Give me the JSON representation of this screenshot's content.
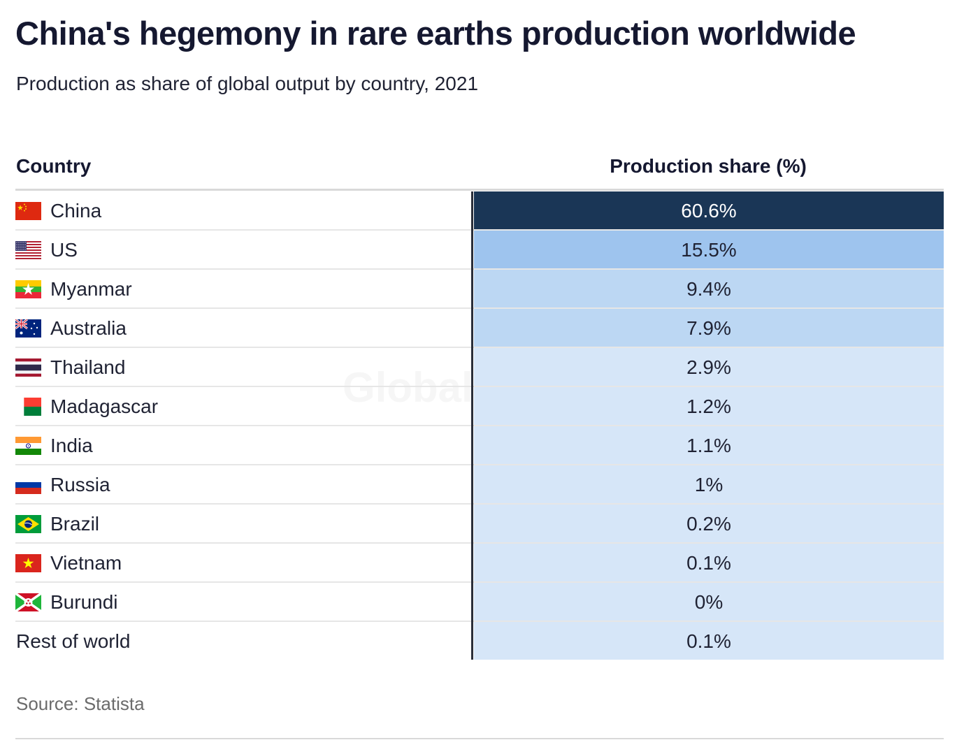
{
  "title": "China's hegemony in rare earths production worldwide",
  "subtitle": "Production as share of global output by country, 2021",
  "source": "Source: Statista",
  "watermark": "GlobalData",
  "colors": {
    "dark": "#1a3656",
    "mid": "#9ec4ee",
    "light": "#bcd7f3",
    "pale": "#d6e6f8"
  },
  "chart_data": {
    "type": "table",
    "columns": [
      "Country",
      "Production share (%)"
    ],
    "rows": [
      {
        "country": "China",
        "flag": "china-flag-icon",
        "share": 60.6,
        "label": "60.6%"
      },
      {
        "country": "US",
        "flag": "us-flag-icon",
        "share": 15.5,
        "label": "15.5%"
      },
      {
        "country": "Myanmar",
        "flag": "myanmar-flag-icon",
        "share": 9.4,
        "label": "9.4%"
      },
      {
        "country": "Australia",
        "flag": "australia-flag-icon",
        "share": 7.9,
        "label": "7.9%"
      },
      {
        "country": "Thailand",
        "flag": "thailand-flag-icon",
        "share": 2.9,
        "label": "2.9%"
      },
      {
        "country": "Madagascar",
        "flag": "madagascar-flag-icon",
        "share": 1.2,
        "label": "1.2%"
      },
      {
        "country": "India",
        "flag": "india-flag-icon",
        "share": 1.1,
        "label": "1.1%"
      },
      {
        "country": "Russia",
        "flag": "russia-flag-icon",
        "share": 1,
        "label": "1%"
      },
      {
        "country": "Brazil",
        "flag": "brazil-flag-icon",
        "share": 0.2,
        "label": "0.2%"
      },
      {
        "country": "Vietnam",
        "flag": "vietnam-flag-icon",
        "share": 0.1,
        "label": "0.1%"
      },
      {
        "country": "Burundi",
        "flag": "burundi-flag-icon",
        "share": 0,
        "label": "0%"
      },
      {
        "country": "Rest of world",
        "flag": "",
        "share": 0.1,
        "label": "0.1%"
      }
    ]
  }
}
